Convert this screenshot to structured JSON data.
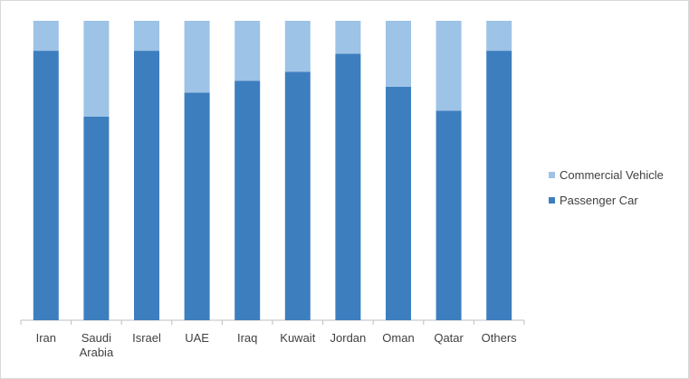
{
  "chart_data": {
    "type": "stacked_bar",
    "categories": [
      "Iran",
      "Saudi Arabia",
      "Israel",
      "UAE",
      "Iraq",
      "Kuwait",
      "Jordan",
      "Oman",
      "Qatar",
      "Others"
    ],
    "series": [
      {
        "name": "Passenger Car",
        "color": "#3d7ebf",
        "values": [
          90,
          68,
          90,
          76,
          80,
          83,
          89,
          78,
          70,
          90
        ]
      },
      {
        "name": "Commercial Vehicle",
        "color": "#9dc3e6",
        "values": [
          10,
          32,
          10,
          24,
          20,
          17,
          11,
          22,
          30,
          10
        ]
      }
    ],
    "legend": "right"
  }
}
